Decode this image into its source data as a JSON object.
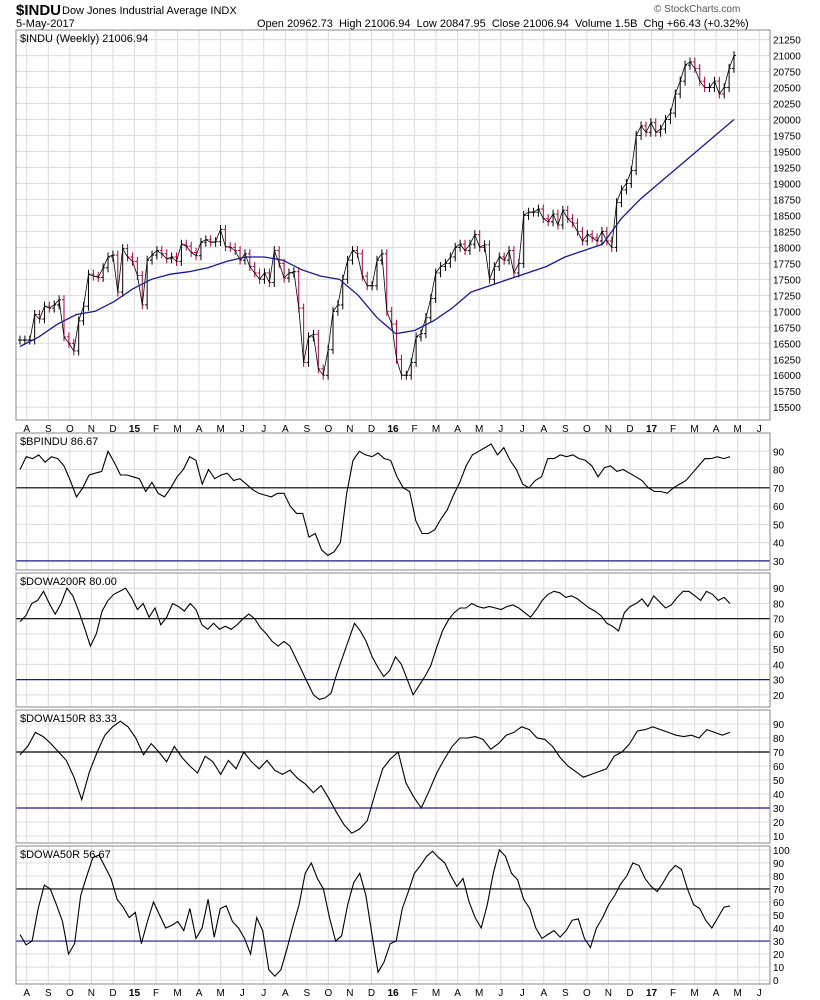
{
  "header": {
    "symbol": "$INDU",
    "name": "Dow Jones Industrial Average INDX",
    "date": "5-May-2017",
    "quote": "Open 20962.73  High 21006.94  Low 20847.95  Close 21006.94  Volume 1.5B  Chg +66.43 (+0.32%)",
    "brand": "© StockCharts.com"
  },
  "colors": {
    "price_up": "#000000",
    "price_down": "#b0003a",
    "moving_average": "#1a1a8c",
    "reference_line_dark": "#000000",
    "reference_line_navy": "#1a1a8c",
    "grid": "#dcdcdc"
  },
  "chart_data": [
    {
      "type": "line",
      "label": "$INDU (Weekly) 21006.94",
      "x_axis_labels": [
        "A",
        "S",
        "O",
        "N",
        "D",
        "15",
        "F",
        "M",
        "A",
        "M",
        "J",
        "J",
        "A",
        "S",
        "O",
        "N",
        "D",
        "16",
        "F",
        "M",
        "A",
        "M",
        "J",
        "J",
        "A",
        "S",
        "O",
        "N",
        "D",
        "17",
        "F",
        "M",
        "A",
        "M",
        "J"
      ],
      "y_ticks": [
        15500,
        15750,
        16000,
        16250,
        16500,
        16750,
        17000,
        17250,
        17500,
        17750,
        18000,
        18250,
        18500,
        18750,
        19000,
        19250,
        19500,
        19750,
        20000,
        20250,
        20500,
        20750,
        21000,
        21250
      ],
      "ylim": [
        15300,
        21400
      ],
      "grid": true,
      "series": [
        {
          "style": "OHLC bars",
          "values": [
            16550,
            16550,
            16550,
            16950,
            16880,
            17080,
            17050,
            17100,
            17180,
            16600,
            16500,
            16380,
            16850,
            17080,
            17580,
            17550,
            17530,
            17680,
            17850,
            17880,
            17300,
            17980,
            17850,
            17780,
            17560,
            17100,
            17800,
            17880,
            17950,
            17900,
            17820,
            17850,
            17780,
            18050,
            18020,
            17920,
            17870,
            18080,
            18120,
            18080,
            18090,
            18280,
            18010,
            18000,
            17950,
            17800,
            17900,
            17700,
            17600,
            17500,
            17600,
            17450,
            17950,
            17750,
            17520,
            17600,
            17620,
            17050,
            16200,
            16600,
            16640,
            16100,
            16000,
            16400,
            17000,
            17100,
            17500,
            17800,
            17950,
            17900,
            17550,
            17400,
            17400,
            17800,
            17900,
            17000,
            16800,
            16250,
            16000,
            16000,
            16200,
            16600,
            16650,
            16900,
            17200,
            17600,
            17700,
            17750,
            17850,
            18000,
            18050,
            17950,
            18050,
            18200,
            18000,
            18040,
            17500,
            17700,
            17850,
            17800,
            17950,
            17600,
            17750,
            18500,
            18550,
            18550,
            18600,
            18450,
            18400,
            18520,
            18350,
            18580,
            18450,
            18380,
            18250,
            18100,
            18200,
            18150,
            18100,
            18250,
            18100,
            18000,
            18700,
            18900,
            19000,
            19200,
            19750,
            19900,
            19800,
            19950,
            19800,
            19850,
            20000,
            20100,
            20400,
            20600,
            20850,
            20900,
            20800,
            20600,
            20500,
            20500,
            20600,
            20400,
            20500,
            20800,
            21000
          ]
        },
        {
          "name": "40-week moving average",
          "values": [
            16450,
            16600,
            16800,
            16950,
            17000,
            17150,
            17350,
            17500,
            17580,
            17620,
            17680,
            17780,
            17850,
            17850,
            17800,
            17650,
            17550,
            17500,
            17250,
            16900,
            16650,
            16700,
            16850,
            17050,
            17300,
            17400,
            17500,
            17600,
            17700,
            17850,
            17950,
            18050,
            18450,
            18750,
            19000,
            19250,
            19500,
            19750,
            20000
          ]
        }
      ]
    },
    {
      "type": "line",
      "label": "$BPINDU 86.67",
      "y_ticks": [
        30,
        40,
        50,
        60,
        70,
        80,
        90
      ],
      "ylim": [
        25,
        100
      ],
      "reference_lines": [
        30,
        70
      ],
      "values": [
        80,
        87,
        86,
        88,
        84,
        87,
        86,
        82,
        74,
        65,
        70,
        77,
        78,
        79,
        90,
        84,
        77,
        77,
        76,
        75,
        68,
        73,
        67,
        65,
        70,
        76,
        80,
        87,
        85,
        72,
        80,
        75,
        77,
        78,
        74,
        75,
        72,
        69,
        67,
        66,
        65,
        67,
        67,
        60,
        56,
        56,
        43,
        45,
        36,
        33,
        35,
        40,
        67,
        85,
        90,
        88,
        87,
        89,
        86,
        85,
        76,
        70,
        68,
        52,
        45,
        45,
        47,
        53,
        58,
        66,
        73,
        82,
        88,
        90,
        92,
        94,
        88,
        92,
        85,
        80,
        72,
        70,
        74,
        76,
        86,
        86,
        88,
        87,
        88,
        86,
        85,
        82,
        76,
        81,
        82,
        79,
        80,
        78,
        76,
        74,
        70,
        68,
        68,
        67,
        70,
        72,
        74,
        78,
        82,
        86,
        86,
        87,
        86,
        87
      ]
    },
    {
      "type": "line",
      "label": "$DOWA200R 80.00",
      "y_ticks": [
        20,
        30,
        40,
        50,
        60,
        70,
        80,
        90
      ],
      "ylim": [
        12,
        100
      ],
      "reference_lines": [
        30,
        70
      ],
      "values": [
        68,
        72,
        80,
        82,
        88,
        80,
        73,
        80,
        90,
        85,
        75,
        64,
        52,
        60,
        75,
        82,
        86,
        88,
        90,
        84,
        76,
        80,
        71,
        77,
        66,
        71,
        80,
        78,
        75,
        80,
        76,
        66,
        63,
        67,
        63,
        65,
        63,
        66,
        70,
        73,
        70,
        64,
        60,
        55,
        52,
        55,
        52,
        44,
        36,
        28,
        20,
        17,
        18,
        21,
        34,
        45,
        56,
        67,
        62,
        55,
        45,
        38,
        32,
        36,
        45,
        40,
        30,
        20,
        26,
        32,
        39,
        51,
        62,
        69,
        74,
        77,
        77,
        80,
        78,
        77,
        78,
        77,
        76,
        78,
        79,
        77,
        74,
        71,
        76,
        82,
        86,
        88,
        87,
        84,
        85,
        83,
        80,
        77,
        75,
        72,
        67,
        65,
        62,
        74,
        78,
        80,
        83,
        78,
        85,
        81,
        77,
        79,
        84,
        88,
        88,
        85,
        82,
        88,
        86,
        82,
        84,
        80
      ]
    },
    {
      "type": "line",
      "label": "$DOWA150R 83.33",
      "y_ticks": [
        10,
        20,
        30,
        40,
        50,
        60,
        70,
        80,
        90
      ],
      "ylim": [
        5,
        100
      ],
      "reference_lines": [
        30,
        70
      ],
      "values": [
        68,
        74,
        84,
        81,
        76,
        70,
        64,
        52,
        36,
        56,
        70,
        82,
        88,
        92,
        88,
        80,
        68,
        76,
        70,
        63,
        74,
        66,
        60,
        55,
        67,
        63,
        54,
        64,
        58,
        70,
        63,
        58,
        64,
        57,
        54,
        57,
        51,
        47,
        41,
        46,
        37,
        27,
        18,
        12,
        15,
        21,
        40,
        58,
        65,
        70,
        48,
        38,
        30,
        42,
        55,
        65,
        74,
        80,
        80,
        81,
        79,
        72,
        76,
        82,
        84,
        88,
        86,
        80,
        79,
        74,
        66,
        60,
        56,
        52,
        54,
        56,
        58,
        67,
        70,
        76,
        85,
        86,
        88,
        86,
        84,
        82,
        81,
        82,
        80,
        86,
        84,
        82,
        84
      ]
    },
    {
      "type": "line",
      "label": "$DOWA50R 56.67",
      "y_ticks": [
        0,
        10,
        20,
        30,
        40,
        50,
        60,
        70,
        80,
        90,
        100
      ],
      "ylim": [
        -3,
        103
      ],
      "reference_lines": [
        30,
        70
      ],
      "values": [
        35,
        27,
        30,
        55,
        73,
        70,
        58,
        45,
        20,
        28,
        65,
        80,
        94,
        96,
        87,
        78,
        62,
        56,
        48,
        52,
        28,
        45,
        60,
        50,
        40,
        42,
        45,
        38,
        55,
        32,
        40,
        62,
        33,
        55,
        57,
        45,
        40,
        32,
        20,
        48,
        38,
        8,
        3,
        8,
        24,
        42,
        58,
        82,
        90,
        78,
        70,
        48,
        30,
        34,
        58,
        75,
        82,
        65,
        35,
        6,
        14,
        28,
        30,
        55,
        68,
        82,
        88,
        95,
        99,
        94,
        90,
        80,
        72,
        78,
        60,
        48,
        40,
        58,
        82,
        100,
        95,
        82,
        77,
        62,
        55,
        40,
        32,
        35,
        38,
        33,
        38,
        46,
        47,
        32,
        25,
        40,
        48,
        58,
        65,
        74,
        80,
        90,
        88,
        78,
        72,
        68,
        75,
        83,
        88,
        85,
        70,
        58,
        55,
        46,
        40,
        48,
        56,
        57
      ]
    }
  ]
}
